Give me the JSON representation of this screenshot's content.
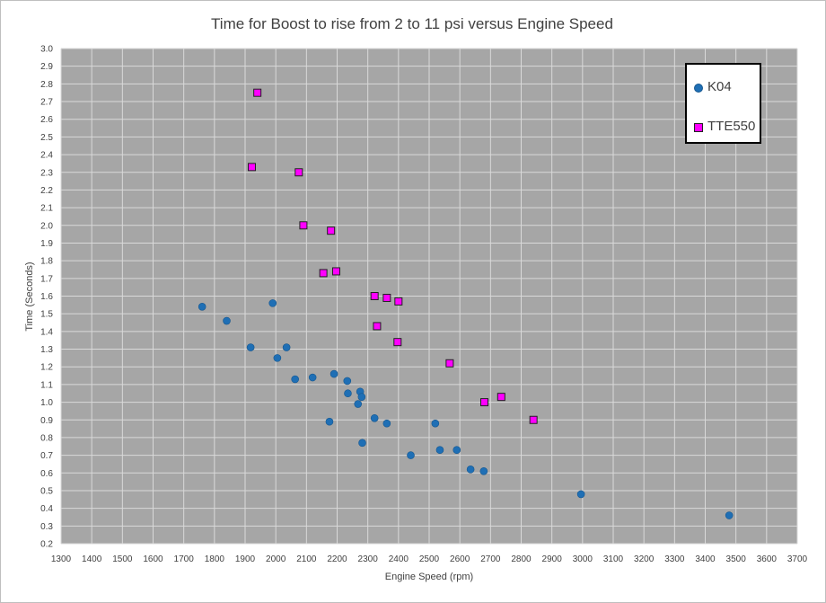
{
  "chart_data": {
    "type": "scatter",
    "title": "Time for Boost to rise from 2 to 11 psi versus Engine Speed",
    "xlabel": "Engine Speed (rpm)",
    "ylabel": "Time (Seconds)",
    "xlim": [
      1300,
      3700
    ],
    "ylim": [
      0.2,
      3.0
    ],
    "x_ticks": [
      "1300",
      "1400",
      "1500",
      "1600",
      "1700",
      "1800",
      "1900",
      "2000",
      "2100",
      "2200",
      "2300",
      "2400",
      "2500",
      "2600",
      "2700",
      "2800",
      "2900",
      "3000",
      "3100",
      "3200",
      "3300",
      "3400",
      "3500",
      "3600",
      "3700"
    ],
    "y_ticks": [
      "3.0",
      "2.9",
      "2.8",
      "2.7",
      "2.6",
      "2.5",
      "2.4",
      "2.3",
      "2.2",
      "2.1",
      "2.0",
      "1.9",
      "1.8",
      "1.7",
      "1.6",
      "1.5",
      "1.4",
      "1.3",
      "1.2",
      "1.1",
      "1.0",
      "0.9",
      "0.8",
      "0.7",
      "0.6",
      "0.5",
      "0.4",
      "0.3",
      "0.2"
    ],
    "grid": true,
    "plot_background": "#a6a6a6",
    "legend_position": "top-right",
    "series": [
      {
        "name": "K04",
        "marker": "circle",
        "color": "#1f6fb5",
        "points": [
          [
            1760,
            1.54
          ],
          [
            1840,
            1.46
          ],
          [
            1918,
            1.31
          ],
          [
            1990,
            1.56
          ],
          [
            2005,
            1.25
          ],
          [
            2035,
            1.31
          ],
          [
            2063,
            1.13
          ],
          [
            2120,
            1.14
          ],
          [
            2175,
            0.89
          ],
          [
            2190,
            1.16
          ],
          [
            2233,
            1.12
          ],
          [
            2235,
            1.05
          ],
          [
            2268,
            0.99
          ],
          [
            2275,
            1.06
          ],
          [
            2280,
            1.03
          ],
          [
            2282,
            0.77
          ],
          [
            2322,
            0.91
          ],
          [
            2362,
            0.88
          ],
          [
            2440,
            0.7
          ],
          [
            2520,
            0.88
          ],
          [
            2535,
            0.73
          ],
          [
            2590,
            0.73
          ],
          [
            2635,
            0.62
          ],
          [
            2678,
            0.61
          ],
          [
            2995,
            0.48
          ],
          [
            3478,
            0.36
          ]
        ]
      },
      {
        "name": "TTE550",
        "marker": "square",
        "color": "#ff00ff",
        "points": [
          [
            1922,
            2.33
          ],
          [
            1940,
            2.75
          ],
          [
            2075,
            2.3
          ],
          [
            2090,
            2.0
          ],
          [
            2155,
            1.73
          ],
          [
            2180,
            1.97
          ],
          [
            2197,
            1.74
          ],
          [
            2322,
            1.6
          ],
          [
            2330,
            1.43
          ],
          [
            2362,
            1.59
          ],
          [
            2397,
            1.34
          ],
          [
            2400,
            1.57
          ],
          [
            2567,
            1.22
          ],
          [
            2680,
            1.0
          ],
          [
            2735,
            1.03
          ],
          [
            2840,
            0.9
          ]
        ]
      }
    ]
  }
}
